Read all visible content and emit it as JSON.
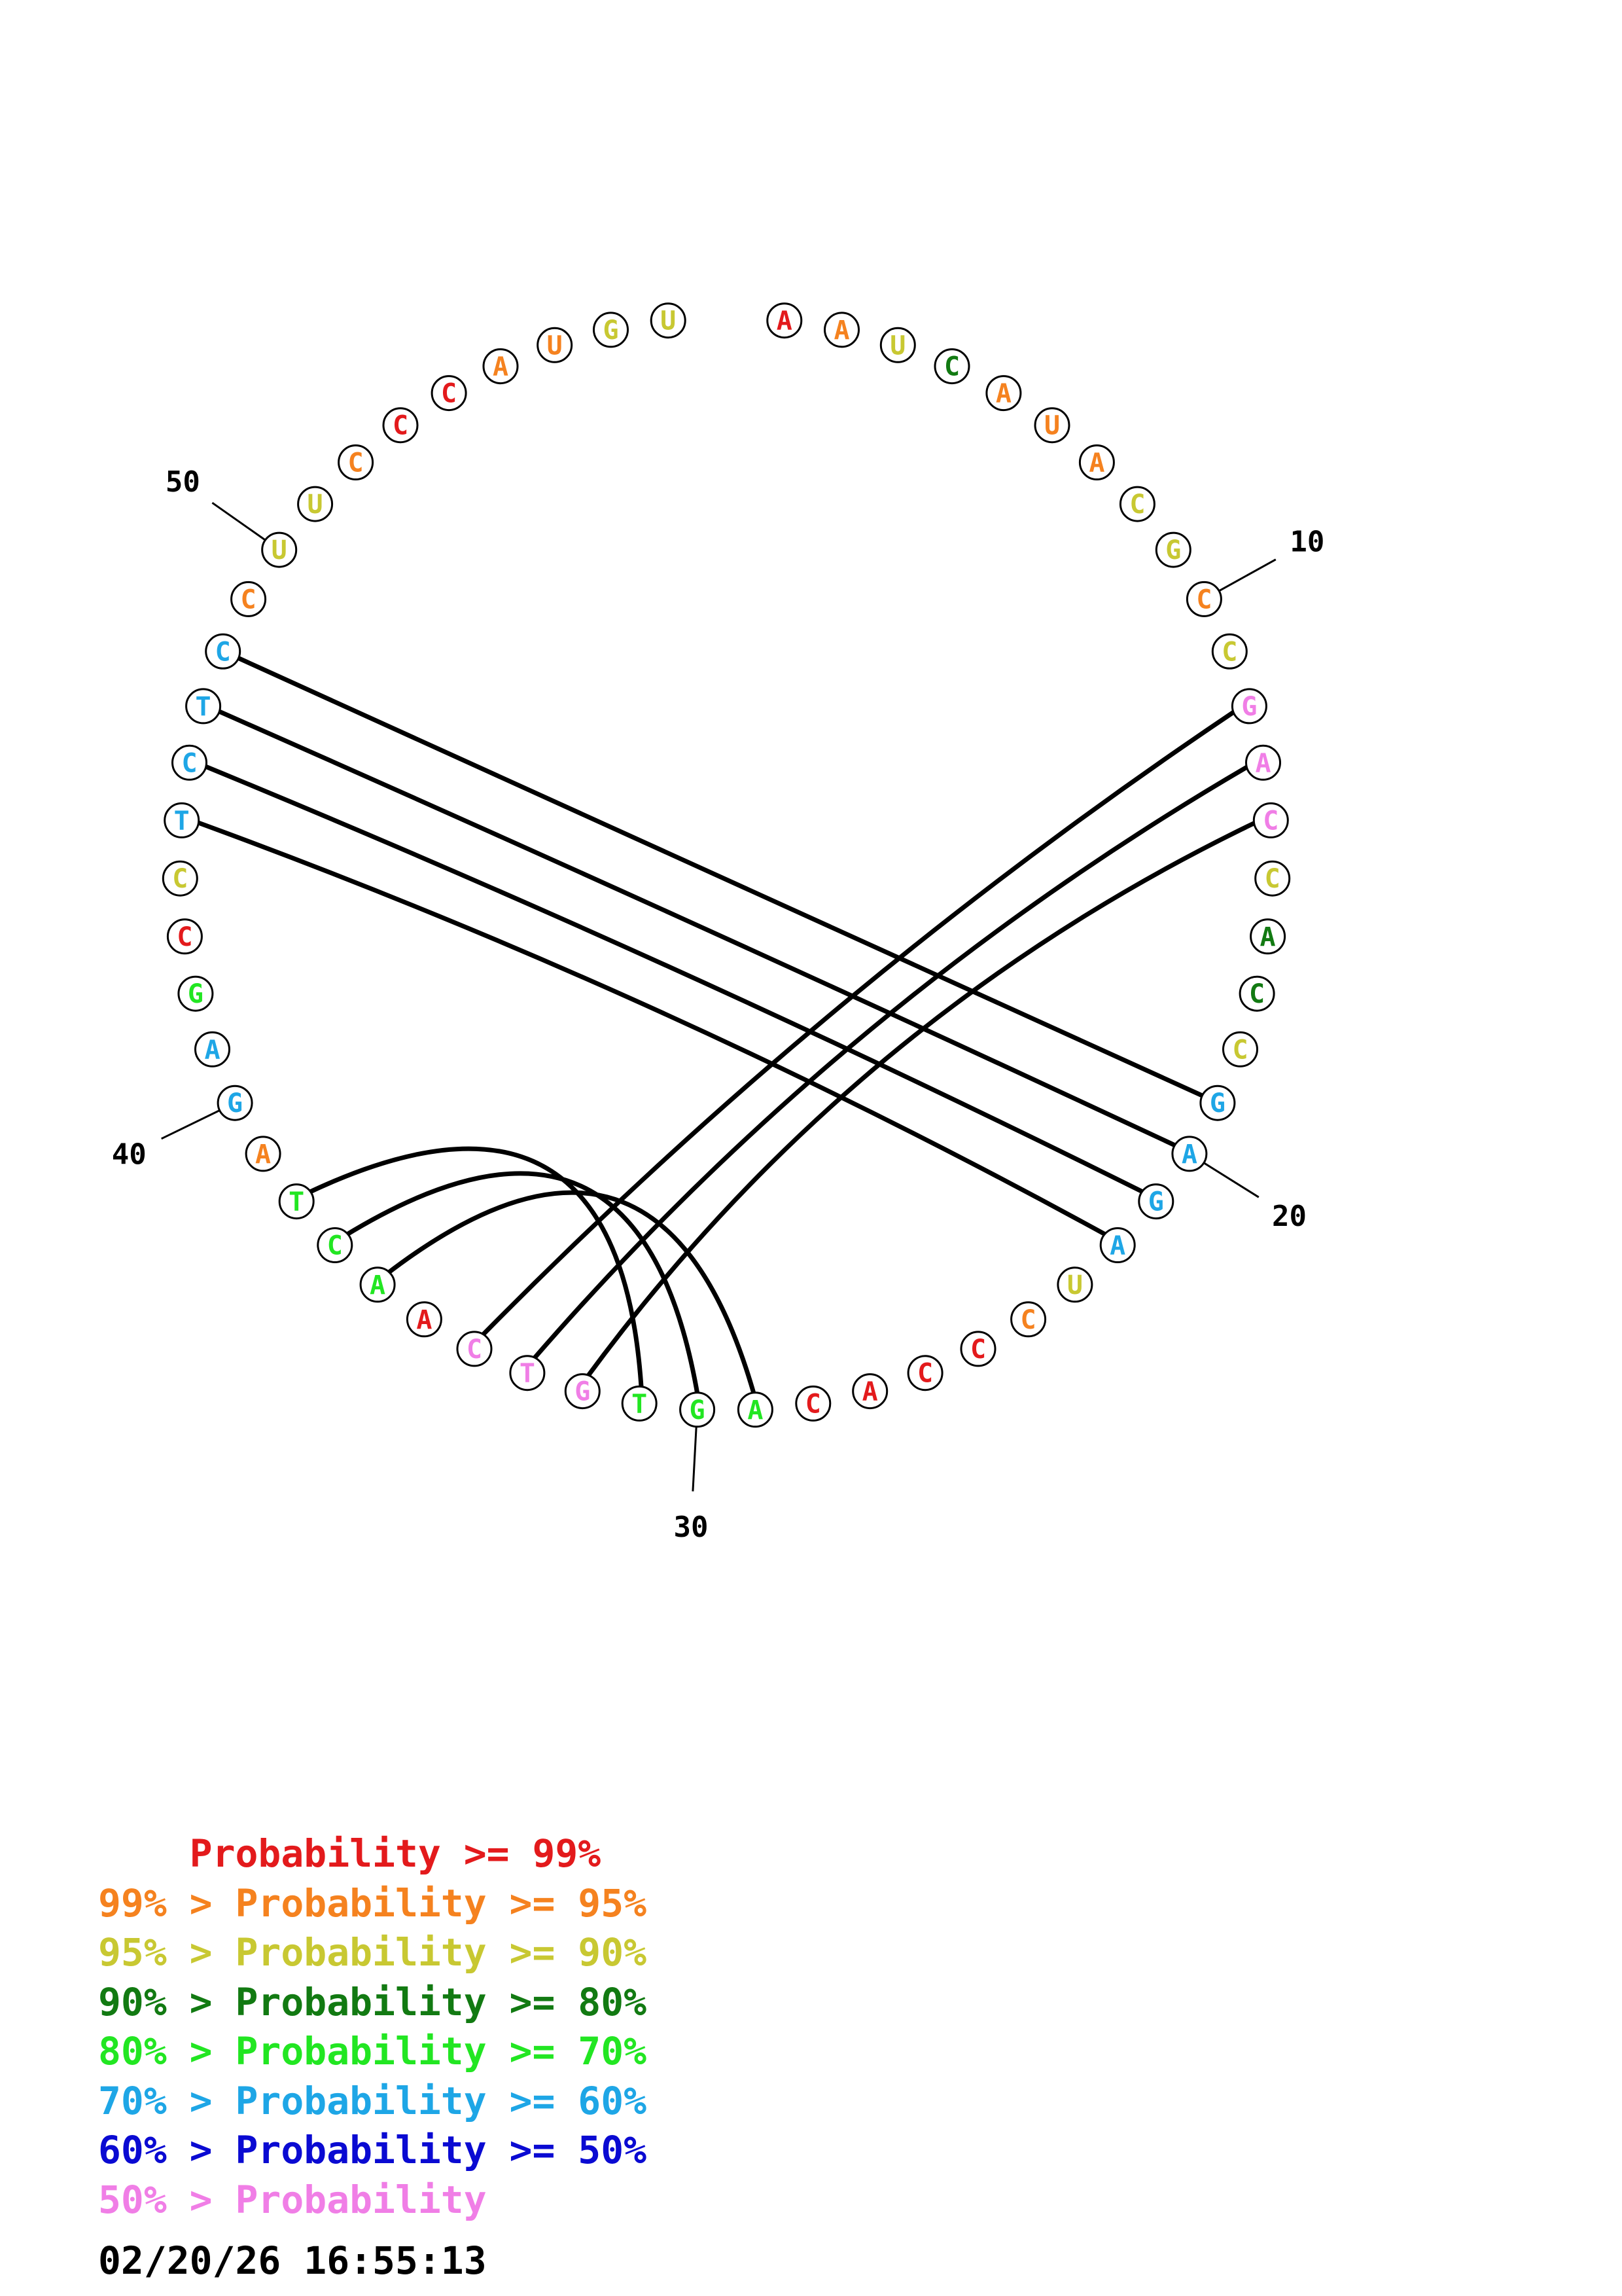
{
  "colors": {
    "p99": "#e31a1c",
    "p95": "#f5821f",
    "p90": "#c8c832",
    "p80": "#127a12",
    "p70": "#22e622",
    "p60": "#1ea6e6",
    "p50": "#0a0ad2",
    "plow": "#f07ee6"
  },
  "sequence": [
    {
      "n": 1,
      "base": "A",
      "c": "p99"
    },
    {
      "n": 2,
      "base": "A",
      "c": "p95"
    },
    {
      "n": 3,
      "base": "U",
      "c": "p90"
    },
    {
      "n": 4,
      "base": "C",
      "c": "p80"
    },
    {
      "n": 5,
      "base": "A",
      "c": "p95"
    },
    {
      "n": 6,
      "base": "U",
      "c": "p95"
    },
    {
      "n": 7,
      "base": "A",
      "c": "p95"
    },
    {
      "n": 8,
      "base": "C",
      "c": "p90"
    },
    {
      "n": 9,
      "base": "G",
      "c": "p90"
    },
    {
      "n": 10,
      "base": "C",
      "c": "p95"
    },
    {
      "n": 11,
      "base": "C",
      "c": "p90"
    },
    {
      "n": 12,
      "base": "G",
      "c": "plow"
    },
    {
      "n": 13,
      "base": "A",
      "c": "plow"
    },
    {
      "n": 14,
      "base": "C",
      "c": "plow"
    },
    {
      "n": 15,
      "base": "C",
      "c": "p90"
    },
    {
      "n": 16,
      "base": "A",
      "c": "p80"
    },
    {
      "n": 17,
      "base": "C",
      "c": "p80"
    },
    {
      "n": 18,
      "base": "C",
      "c": "p90"
    },
    {
      "n": 19,
      "base": "G",
      "c": "p60"
    },
    {
      "n": 20,
      "base": "A",
      "c": "p60"
    },
    {
      "n": 21,
      "base": "G",
      "c": "p60"
    },
    {
      "n": 22,
      "base": "A",
      "c": "p60"
    },
    {
      "n": 23,
      "base": "U",
      "c": "p90"
    },
    {
      "n": 24,
      "base": "C",
      "c": "p95"
    },
    {
      "n": 25,
      "base": "C",
      "c": "p99"
    },
    {
      "n": 26,
      "base": "C",
      "c": "p99"
    },
    {
      "n": 27,
      "base": "A",
      "c": "p99"
    },
    {
      "n": 28,
      "base": "C",
      "c": "p99"
    },
    {
      "n": 29,
      "base": "A",
      "c": "p70"
    },
    {
      "n": 30,
      "base": "G",
      "c": "p70"
    },
    {
      "n": 31,
      "base": "T",
      "c": "p70"
    },
    {
      "n": 32,
      "base": "G",
      "c": "plow"
    },
    {
      "n": 33,
      "base": "T",
      "c": "plow"
    },
    {
      "n": 34,
      "base": "C",
      "c": "plow"
    },
    {
      "n": 35,
      "base": "A",
      "c": "p99"
    },
    {
      "n": 36,
      "base": "A",
      "c": "p70"
    },
    {
      "n": 37,
      "base": "C",
      "c": "p70"
    },
    {
      "n": 38,
      "base": "T",
      "c": "p70"
    },
    {
      "n": 39,
      "base": "A",
      "c": "p95"
    },
    {
      "n": 40,
      "base": "G",
      "c": "p60"
    },
    {
      "n": 41,
      "base": "A",
      "c": "p60"
    },
    {
      "n": 42,
      "base": "G",
      "c": "p70"
    },
    {
      "n": 43,
      "base": "C",
      "c": "p99"
    },
    {
      "n": 44,
      "base": "C",
      "c": "p90"
    },
    {
      "n": 45,
      "base": "T",
      "c": "p60"
    },
    {
      "n": 46,
      "base": "C",
      "c": "p60"
    },
    {
      "n": 47,
      "base": "T",
      "c": "p60"
    },
    {
      "n": 48,
      "base": "C",
      "c": "p60"
    },
    {
      "n": 49,
      "base": "C",
      "c": "p95"
    },
    {
      "n": 50,
      "base": "U",
      "c": "p90"
    },
    {
      "n": 51,
      "base": "U",
      "c": "p90"
    },
    {
      "n": 52,
      "base": "C",
      "c": "p95"
    },
    {
      "n": 53,
      "base": "C",
      "c": "p99"
    },
    {
      "n": 54,
      "base": "C",
      "c": "p99"
    },
    {
      "n": 55,
      "base": "A",
      "c": "p95"
    },
    {
      "n": 56,
      "base": "U",
      "c": "p95"
    },
    {
      "n": 57,
      "base": "G",
      "c": "p90"
    },
    {
      "n": 58,
      "base": "U",
      "c": "p90"
    }
  ],
  "pairs": [
    [
      12,
      34
    ],
    [
      13,
      33
    ],
    [
      14,
      32
    ],
    [
      19,
      48
    ],
    [
      20,
      47
    ],
    [
      21,
      46
    ],
    [
      22,
      45
    ],
    [
      29,
      36
    ],
    [
      30,
      37
    ],
    [
      31,
      38
    ]
  ],
  "tick_marks": [
    {
      "n": 10,
      "label": "10"
    },
    {
      "n": 20,
      "label": "20"
    },
    {
      "n": 30,
      "label": "30"
    },
    {
      "n": 40,
      "label": "40"
    },
    {
      "n": 50,
      "label": "50"
    }
  ],
  "legend": [
    {
      "prefix": "    ",
      "sep": "",
      "name": "Probability",
      "op": " >=",
      "pct": " 99%",
      "c": "p99"
    },
    {
      "prefix": "99%",
      "sep": " > ",
      "name": "Probability",
      "op": " >=",
      "pct": " 95%",
      "c": "p95"
    },
    {
      "prefix": "95%",
      "sep": " > ",
      "name": "Probability",
      "op": " >=",
      "pct": " 90%",
      "c": "p90"
    },
    {
      "prefix": "90%",
      "sep": " > ",
      "name": "Probability",
      "op": " >=",
      "pct": " 80%",
      "c": "p80"
    },
    {
      "prefix": "80%",
      "sep": " > ",
      "name": "Probability",
      "op": " >=",
      "pct": " 70%",
      "c": "p70"
    },
    {
      "prefix": "70%",
      "sep": " > ",
      "name": "Probability",
      "op": " >=",
      "pct": " 60%",
      "c": "p60"
    },
    {
      "prefix": "60%",
      "sep": " > ",
      "name": "Probability",
      "op": " >=",
      "pct": " 50%",
      "c": "p50"
    },
    {
      "prefix": "50%",
      "sep": " > ",
      "name": "Probability",
      "op": "",
      "pct": "",
      "c": "plow"
    }
  ],
  "timestamp": "02/20/26 16:55:13"
}
